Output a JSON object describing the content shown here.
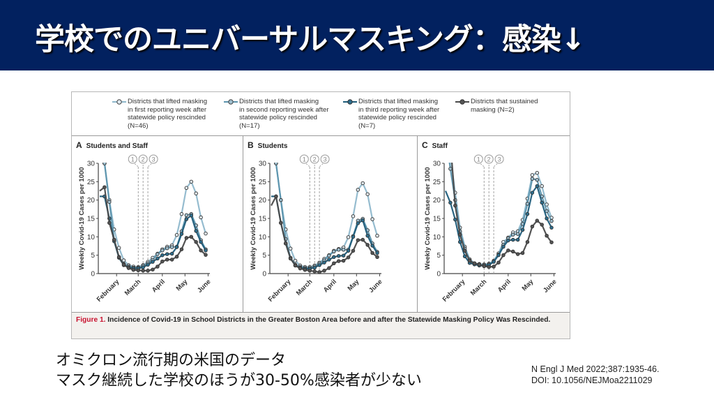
{
  "slide": {
    "title": "学校でのユニバーサルマスキング：感染↓",
    "body_lines": [
      "オミクロン流行期の米国のデータ",
      "マスク継続した学校のほうが30-50%感染者が少ない"
    ],
    "citation_lines": [
      "N Engl J Med 2022;387:1935-46.",
      "DOI: 10.1056/NEJMoa2211029"
    ],
    "colors": {
      "title_bg": "#02215f",
      "title_text": "#ffffff"
    }
  },
  "figure": {
    "caption_label": "Figure 1.",
    "caption_text": " Incidence of Covid-19 in School Districts in the Greater Boston Area before and after the Statewide Masking Policy Was Rescinded.",
    "legend": [
      {
        "label": "Districts that lifted masking\nin first reporting week after\nstatewide policy rescinded\n(N=46)",
        "color": "#8fb8cc",
        "marker_fill": "#dfe9ef"
      },
      {
        "label": "Districts that lifted masking\nin second reporting week after\nstatewide policy rescinded\n(N=17)",
        "color": "#5b93ad",
        "marker_fill": "#9fbfcf"
      },
      {
        "label": "Districts that lifted masking\nin third reporting week after\nstatewide policy rescinded\n(N=7)",
        "color": "#1d5c7a",
        "marker_fill": "#2d6f8f"
      },
      {
        "label": "Districts that sustained\nmasking (N=2)",
        "color": "#4a4a4a",
        "marker_fill": "#555555"
      }
    ]
  },
  "chart_data": [
    {
      "type": "line",
      "panel_letter": "A",
      "title": "Students and Staff",
      "ylabel": "Weekly Covid-19 Cases per 1000",
      "xlabel": "",
      "ylim": [
        0,
        30
      ],
      "yticks": [
        0,
        5,
        10,
        15,
        20,
        25,
        30
      ],
      "month_ticks": [
        "February",
        "March",
        "April",
        "May",
        "June"
      ],
      "month_tick_weeks": [
        3.5,
        8,
        13,
        17.7,
        22.5
      ],
      "policy_markers": [
        {
          "label": "1",
          "week": 8
        },
        {
          "label": "2",
          "week": 9
        },
        {
          "label": "3",
          "week": 10
        }
      ],
      "weeks": [
        0,
        1,
        2,
        3,
        4,
        5,
        6,
        7,
        8,
        9,
        10,
        11,
        12,
        13,
        14,
        15,
        16,
        17,
        18,
        19,
        20,
        21,
        22,
        23
      ],
      "series": [
        {
          "name": "Lifted week 1 (N=46)",
          "values": [
            38,
            30,
            20,
            12,
            7,
            3.6,
            2.3,
            1.9,
            1.8,
            2.3,
            3.2,
            4.3,
            5.4,
            6.6,
            7.3,
            7.7,
            10.5,
            16.2,
            23.3,
            25,
            21.8,
            15.3,
            10.9,
            null
          ]
        },
        {
          "name": "Lifted week 2 (N=17)",
          "values": [
            36,
            30,
            19.5,
            9.2,
            4.5,
            2.6,
            2,
            1.6,
            1.6,
            2.1,
            2.8,
            3.7,
            5.3,
            6.3,
            6.9,
            7.2,
            7.3,
            11.5,
            15.9,
            16.2,
            13.1,
            9.1,
            6.6,
            null
          ]
        },
        {
          "name": "Lifted week 3 (N=7)",
          "values": [
            21,
            21,
            15,
            8.8,
            4.3,
            2.3,
            1.7,
            1.4,
            1.4,
            1.7,
            2.4,
            3.2,
            4.1,
            5,
            5.3,
            5.4,
            7.2,
            10.8,
            14.8,
            15.8,
            11.6,
            8.6,
            6.3,
            null
          ]
        },
        {
          "name": "Sustained masking (N=2)",
          "values": [
            22.5,
            23.5,
            13.8,
            9.2,
            4.5,
            2.4,
            1.5,
            1,
            0.9,
            0.8,
            0.8,
            1.1,
            1.9,
            3.3,
            3.8,
            3.8,
            4.6,
            6.6,
            9.7,
            10,
            8.6,
            6.3,
            5.1,
            null
          ]
        }
      ]
    },
    {
      "type": "line",
      "panel_letter": "B",
      "title": "Students",
      "ylabel": "Weekly Covid-19 Cases per 1000",
      "xlabel": "",
      "ylim": [
        0,
        30
      ],
      "yticks": [
        0,
        5,
        10,
        15,
        20,
        25,
        30
      ],
      "month_ticks": [
        "February",
        "March",
        "April",
        "May",
        "June"
      ],
      "month_tick_weeks": [
        3.5,
        8,
        13,
        17.7,
        22.5
      ],
      "policy_markers": [
        {
          "label": "1",
          "week": 8
        },
        {
          "label": "2",
          "week": 9
        },
        {
          "label": "3",
          "week": 10
        }
      ],
      "weeks": [
        0,
        1,
        2,
        3,
        4,
        5,
        6,
        7,
        8,
        9,
        10,
        11,
        12,
        13,
        14,
        15,
        16,
        17,
        18,
        19,
        20,
        21,
        22,
        23
      ],
      "series": [
        {
          "name": "Lifted week 1 (N=46)",
          "values": [
            38,
            30,
            20,
            12,
            6.8,
            3.5,
            2.2,
            1.8,
            1.8,
            2.2,
            3,
            4,
            5,
            6.2,
            6.7,
            7.1,
            9.9,
            15.6,
            22.8,
            24.6,
            21.6,
            14.8,
            10.3,
            null
          ]
        },
        {
          "name": "Lifted week 2 (N=17)",
          "values": [
            36,
            30,
            20,
            9.4,
            4.3,
            2.4,
            1.8,
            1.5,
            1.5,
            1.9,
            2.7,
            3.6,
            4.9,
            6,
            6.5,
            6.5,
            6.5,
            10.2,
            14.4,
            14.9,
            11.8,
            8.2,
            5.9,
            null
          ]
        },
        {
          "name": "Lifted week 3 (N=7)",
          "values": [
            21,
            21,
            13.8,
            8.2,
            4.1,
            2.2,
            1.6,
            1.3,
            1.3,
            1.6,
            2.3,
            3,
            3.8,
            4.5,
            4.8,
            4.9,
            6.2,
            10,
            13.7,
            14.5,
            10.3,
            7.6,
            5.6,
            null
          ]
        },
        {
          "name": "Sustained masking (N=2)",
          "values": [
            18.5,
            21,
            13.8,
            8.2,
            4.1,
            2.2,
            1.4,
            1,
            0.8,
            0.6,
            0.4,
            0.8,
            1.5,
            2.8,
            3.4,
            3.5,
            4.4,
            6.2,
            9.1,
            9.2,
            7.8,
            5.6,
            4.5,
            null
          ]
        }
      ]
    },
    {
      "type": "line",
      "panel_letter": "C",
      "title": "Staff",
      "ylabel": "Weekly Covid-19 Cases per 1000",
      "xlabel": "",
      "ylim": [
        0,
        30
      ],
      "yticks": [
        0,
        5,
        10,
        15,
        20,
        25,
        30
      ],
      "month_ticks": [
        "February",
        "March",
        "April",
        "May",
        "June"
      ],
      "month_tick_weeks": [
        3.5,
        8,
        13,
        17.7,
        22.5
      ],
      "policy_markers": [
        {
          "label": "1",
          "week": 8
        },
        {
          "label": "2",
          "week": 9
        },
        {
          "label": "3",
          "week": 10
        }
      ],
      "weeks": [
        0,
        1,
        2,
        3,
        4,
        5,
        6,
        7,
        8,
        9,
        10,
        11,
        12,
        13,
        14,
        15,
        16,
        17,
        18,
        19,
        20,
        21,
        22,
        23
      ],
      "series": [
        {
          "name": "Lifted week 1 (N=46)",
          "values": [
            40,
            32,
            22,
            12.5,
            7.3,
            3.9,
            2.8,
            2.6,
            2.5,
            2.7,
            3.5,
            5.5,
            8.6,
            9.8,
            11.2,
            11.5,
            14.6,
            20.4,
            26.8,
            27.4,
            23.8,
            18.8,
            15.2,
            null
          ]
        },
        {
          "name": "Lifted week 2 (N=17)",
          "values": [
            38,
            28.5,
            20,
            11.5,
            6.8,
            3.6,
            2.7,
            2.4,
            2.3,
            2.5,
            3.3,
            5.2,
            7.8,
            9.6,
            10.6,
            10.8,
            13.5,
            19,
            25.8,
            25.5,
            21,
            17,
            14.3,
            null
          ]
        },
        {
          "name": "Lifted week 3 (N=7)",
          "values": [
            22.5,
            19.3,
            14.7,
            8.6,
            4.7,
            2.9,
            2.5,
            2.2,
            2.1,
            2.3,
            3.2,
            5,
            7.3,
            9,
            9.2,
            9.2,
            11.9,
            16.2,
            22,
            23.8,
            19.3,
            15,
            12.5,
            null
          ]
        },
        {
          "name": "Sustained masking (N=2)",
          "values": [
            43,
            36,
            18.5,
            10.6,
            6.2,
            3.5,
            2.8,
            2.5,
            2,
            1.8,
            1.9,
            3,
            5,
            6.3,
            6,
            5.3,
            5.6,
            8.6,
            12.8,
            14.4,
            13.3,
            10.3,
            8.5,
            null
          ]
        }
      ]
    }
  ]
}
